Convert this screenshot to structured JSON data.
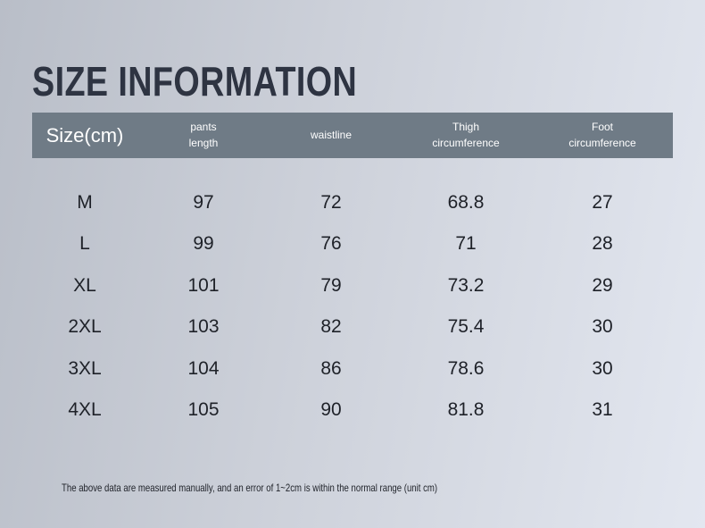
{
  "title": "SIZE INFORMATION",
  "table": {
    "header": [
      "Size(cm)",
      "pants length",
      "waistline",
      "Thigh circumference",
      "Foot circumference"
    ],
    "rows": [
      [
        "M",
        97,
        72,
        68.8,
        27
      ],
      [
        "L",
        99,
        76,
        71,
        28
      ],
      [
        "XL",
        101,
        79,
        73.2,
        29
      ],
      [
        "2XL",
        103,
        82,
        75.4,
        30
      ],
      [
        "3XL",
        104,
        86,
        78.6,
        30
      ],
      [
        "4XL",
        105,
        90,
        81.8,
        31
      ]
    ]
  },
  "footnote": "The above data are measured manually, and an error of 1~2cm is within the normal range (unit cm)"
}
